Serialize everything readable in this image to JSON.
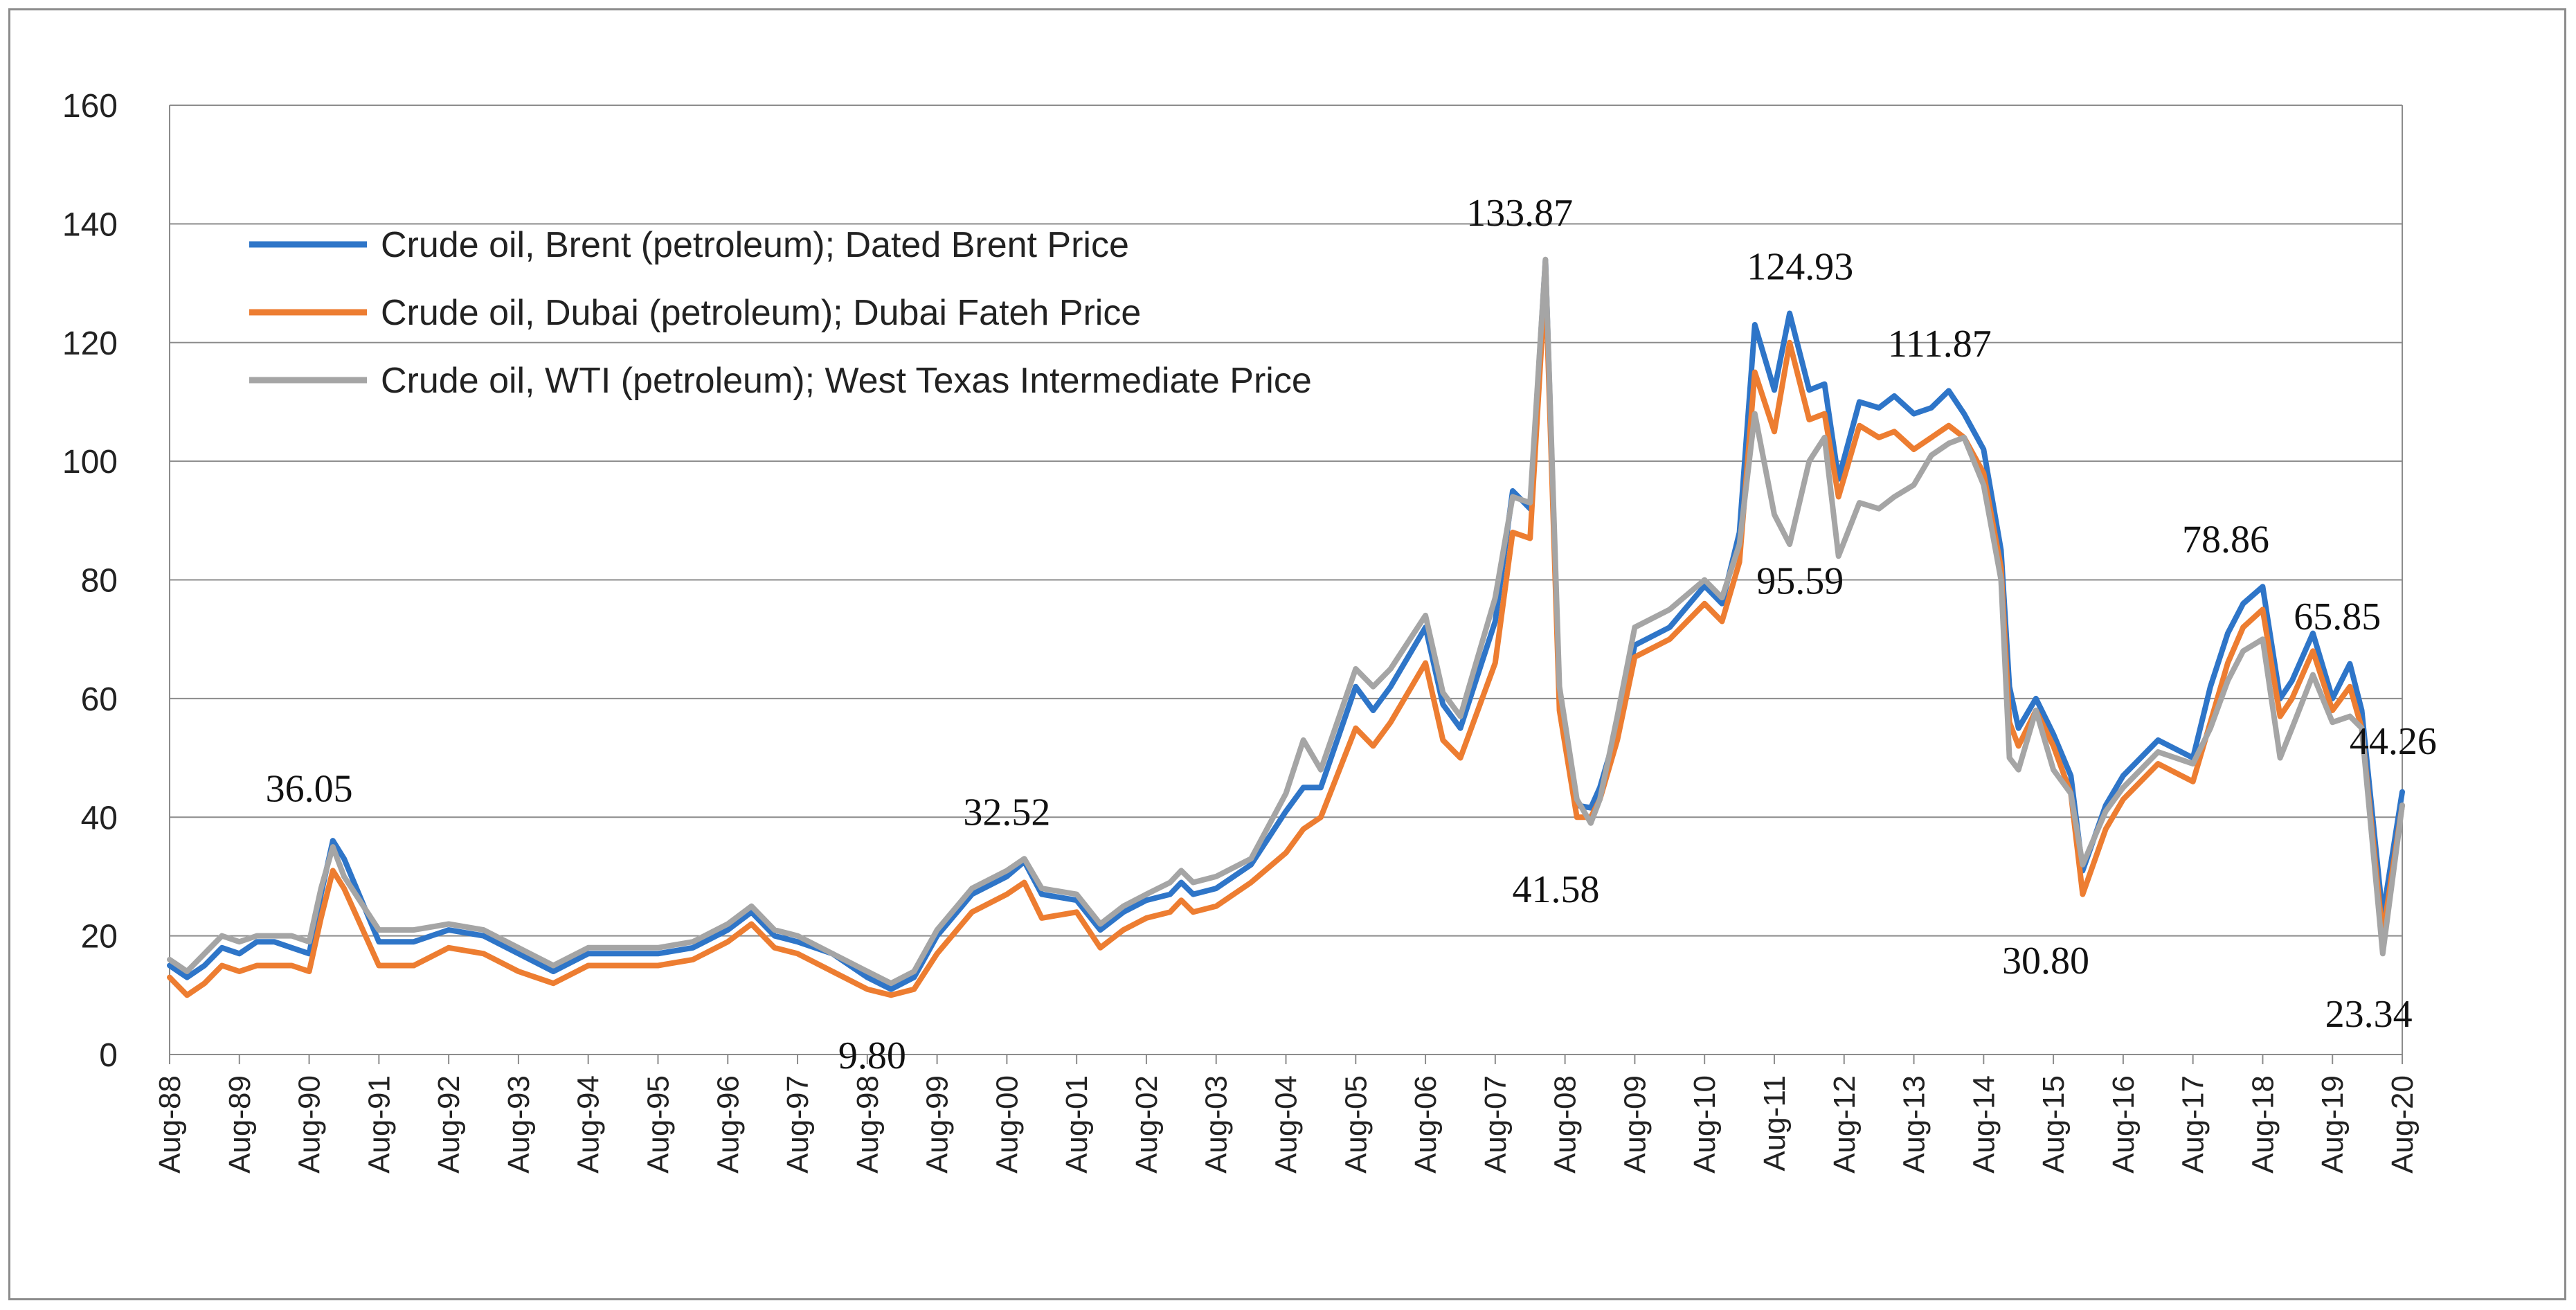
{
  "chart_data": {
    "type": "line",
    "title": "",
    "xlabel": "",
    "ylabel": "",
    "ylim": [
      0,
      160
    ],
    "yticks": [
      0,
      20,
      40,
      60,
      80,
      100,
      120,
      140,
      160
    ],
    "grid": "horizontal",
    "legend_position": "top-left",
    "categories": [
      "Aug-88",
      "Aug-89",
      "Aug-90",
      "Aug-91",
      "Aug-92",
      "Aug-93",
      "Aug-94",
      "Aug-95",
      "Aug-96",
      "Aug-97",
      "Aug-98",
      "Aug-99",
      "Aug-00",
      "Aug-01",
      "Aug-02",
      "Aug-03",
      "Aug-04",
      "Aug-05",
      "Aug-06",
      "Aug-07",
      "Aug-08",
      "Aug-09",
      "Aug-10",
      "Aug-11",
      "Aug-12",
      "Aug-13",
      "Aug-14",
      "Aug-15",
      "Aug-16",
      "Aug-17",
      "Aug-18",
      "Aug-19",
      "Aug-20"
    ],
    "series": [
      {
        "name": "Crude oil, Brent  (petroleum); Dated Brent Price",
        "color": "#2e75c8",
        "x": [
          1988.58,
          1988.83,
          1989.08,
          1989.33,
          1989.58,
          1989.83,
          1990.08,
          1990.33,
          1990.58,
          1990.75,
          1990.92,
          1991.08,
          1991.58,
          1992.08,
          1992.58,
          1993.08,
          1993.58,
          1994.08,
          1994.58,
          1995.08,
          1995.58,
          1996.08,
          1996.58,
          1996.92,
          1997.25,
          1997.58,
          1998.08,
          1998.58,
          1998.92,
          1999.25,
          1999.58,
          2000.08,
          2000.58,
          2000.83,
          2001.08,
          2001.58,
          2001.92,
          2002.25,
          2002.58,
          2002.92,
          2003.08,
          2003.25,
          2003.58,
          2004.08,
          2004.58,
          2004.83,
          2005.08,
          2005.58,
          2005.83,
          2006.08,
          2006.58,
          2006.83,
          2007.08,
          2007.58,
          2007.83,
          2008.08,
          2008.3,
          2008.5,
          2008.75,
          2008.95,
          2009.08,
          2009.33,
          2009.58,
          2010.08,
          2010.58,
          2010.83,
          2011.08,
          2011.3,
          2011.58,
          2011.8,
          2012.08,
          2012.3,
          2012.5,
          2012.8,
          2013.08,
          2013.3,
          2013.58,
          2013.83,
          2014.08,
          2014.3,
          2014.58,
          2014.83,
          2014.95,
          2015.08,
          2015.33,
          2015.58,
          2015.83,
          2016.0,
          2016.33,
          2016.58,
          2017.08,
          2017.58,
          2017.83,
          2018.08,
          2018.3,
          2018.58,
          2018.83,
          2019.0,
          2019.3,
          2019.58,
          2019.83,
          2020.0,
          2020.3,
          2020.58
        ],
        "values": [
          15,
          13,
          15,
          18,
          17,
          19,
          19,
          18,
          17,
          27,
          36.05,
          33,
          19,
          19,
          21,
          20,
          17,
          14,
          17,
          17,
          17,
          18,
          21,
          24,
          20,
          19,
          17,
          13,
          11,
          13,
          20,
          27,
          30,
          32.52,
          27,
          26,
          21,
          24,
          26,
          27,
          29,
          27,
          28,
          32,
          41,
          45,
          45,
          62,
          58,
          62,
          72,
          59,
          55,
          73,
          95,
          92,
          133.87,
          60,
          42,
          41.58,
          45,
          55,
          69,
          72,
          79,
          76,
          88,
          123,
          112,
          124.93,
          112,
          113,
          97,
          110,
          109,
          111,
          108,
          109,
          111.87,
          108,
          102,
          85,
          62,
          55,
          60,
          54,
          47,
          31,
          42,
          47,
          53,
          50,
          62,
          71,
          76,
          78.86,
          60,
          63,
          71,
          60,
          65.85,
          58,
          23.34,
          44.26
        ]
      },
      {
        "name": "Crude oil, Dubai (petroleum); Dubai Fateh Price",
        "color": "#ed7d31",
        "x": [
          1988.58,
          1988.83,
          1989.08,
          1989.33,
          1989.58,
          1989.83,
          1990.08,
          1990.33,
          1990.58,
          1990.75,
          1990.92,
          1991.08,
          1991.58,
          1992.08,
          1992.58,
          1993.08,
          1993.58,
          1994.08,
          1994.58,
          1995.08,
          1995.58,
          1996.08,
          1996.58,
          1996.92,
          1997.25,
          1997.58,
          1998.08,
          1998.58,
          1998.92,
          1999.25,
          1999.58,
          2000.08,
          2000.58,
          2000.83,
          2001.08,
          2001.58,
          2001.92,
          2002.25,
          2002.58,
          2002.92,
          2003.08,
          2003.25,
          2003.58,
          2004.08,
          2004.58,
          2004.83,
          2005.08,
          2005.58,
          2005.83,
          2006.08,
          2006.58,
          2006.83,
          2007.08,
          2007.58,
          2007.83,
          2008.08,
          2008.3,
          2008.5,
          2008.75,
          2008.95,
          2009.08,
          2009.33,
          2009.58,
          2010.08,
          2010.58,
          2010.83,
          2011.08,
          2011.3,
          2011.58,
          2011.8,
          2012.08,
          2012.3,
          2012.5,
          2012.8,
          2013.08,
          2013.3,
          2013.58,
          2013.83,
          2014.08,
          2014.3,
          2014.58,
          2014.83,
          2014.95,
          2015.08,
          2015.33,
          2015.58,
          2015.83,
          2016.0,
          2016.33,
          2016.58,
          2017.08,
          2017.58,
          2017.83,
          2018.08,
          2018.3,
          2018.58,
          2018.83,
          2019.0,
          2019.3,
          2019.58,
          2019.83,
          2020.0,
          2020.3,
          2020.58
        ],
        "values": [
          13,
          10,
          12,
          15,
          14,
          15,
          15,
          15,
          14,
          23,
          31,
          28,
          15,
          15,
          18,
          17,
          14,
          12,
          15,
          15,
          15,
          16,
          19,
          22,
          18,
          17,
          14,
          11,
          10,
          11,
          17,
          24,
          27,
          29,
          23,
          24,
          18,
          21,
          23,
          24,
          26,
          24,
          25,
          29,
          34,
          38,
          40,
          55,
          52,
          56,
          66,
          53,
          50,
          66,
          88,
          87,
          131,
          58,
          40,
          40,
          43,
          53,
          67,
          70,
          76,
          73,
          83,
          115,
          105,
          120,
          107,
          108,
          94,
          106,
          104,
          105,
          102,
          104,
          106,
          104,
          98,
          82,
          56,
          52,
          58,
          52,
          44,
          27,
          38,
          43,
          49,
          46,
          56,
          66,
          72,
          75,
          57,
          60,
          68,
          58,
          62,
          55,
          20,
          42
        ]
      },
      {
        "name": "Crude oil, WTI (petroleum); West Texas Intermediate Price",
        "color": "#a5a5a5",
        "x": [
          1988.58,
          1988.83,
          1989.08,
          1989.33,
          1989.58,
          1989.83,
          1990.08,
          1990.33,
          1990.58,
          1990.75,
          1990.92,
          1991.08,
          1991.58,
          1992.08,
          1992.58,
          1993.08,
          1993.58,
          1994.08,
          1994.58,
          1995.08,
          1995.58,
          1996.08,
          1996.58,
          1996.92,
          1997.25,
          1997.58,
          1998.08,
          1998.58,
          1998.92,
          1999.25,
          1999.58,
          2000.08,
          2000.58,
          2000.83,
          2001.08,
          2001.58,
          2001.92,
          2002.25,
          2002.58,
          2002.92,
          2003.08,
          2003.25,
          2003.58,
          2004.08,
          2004.58,
          2004.83,
          2005.08,
          2005.58,
          2005.83,
          2006.08,
          2006.58,
          2006.83,
          2007.08,
          2007.58,
          2007.83,
          2008.08,
          2008.3,
          2008.5,
          2008.75,
          2008.95,
          2009.08,
          2009.33,
          2009.58,
          2010.08,
          2010.58,
          2010.83,
          2011.08,
          2011.3,
          2011.58,
          2011.8,
          2012.08,
          2012.3,
          2012.5,
          2012.8,
          2013.08,
          2013.3,
          2013.58,
          2013.83,
          2014.08,
          2014.3,
          2014.58,
          2014.83,
          2014.95,
          2015.08,
          2015.33,
          2015.58,
          2015.83,
          2016.0,
          2016.33,
          2016.58,
          2017.08,
          2017.58,
          2017.83,
          2018.08,
          2018.3,
          2018.58,
          2018.83,
          2019.0,
          2019.3,
          2019.58,
          2019.83,
          2020.0,
          2020.3,
          2020.58
        ],
        "values": [
          16,
          14,
          17,
          20,
          19,
          20,
          20,
          20,
          19,
          28,
          35,
          30,
          21,
          21,
          22,
          21,
          18,
          15,
          18,
          18,
          18,
          19,
          22,
          25,
          21,
          20,
          17,
          14,
          12,
          14,
          21,
          28,
          31,
          33,
          28,
          27,
          22,
          25,
          27,
          29,
          31,
          29,
          30,
          33,
          44,
          53,
          48,
          65,
          62,
          65,
          74,
          61,
          57,
          77,
          94,
          93,
          134,
          62,
          43,
          39,
          43,
          57,
          72,
          75,
          80,
          77,
          86,
          108,
          91,
          86,
          100,
          104,
          84,
          93,
          92,
          94,
          96,
          101,
          103,
          104,
          96,
          80,
          50,
          48,
          58,
          48,
          44,
          32,
          41,
          45,
          51,
          49,
          55,
          63,
          68,
          70,
          50,
          55,
          64,
          56,
          57,
          55,
          17,
          42
        ]
      }
    ],
    "annotations": [
      {
        "text": "36.05",
        "x": 1990.58,
        "y": 45
      },
      {
        "text": "9.80",
        "x": 1998.65,
        "y": 0
      },
      {
        "text": "32.52",
        "x": 2000.58,
        "y": 41
      },
      {
        "text": "133.87",
        "x": 2007.93,
        "y": 142
      },
      {
        "text": "41.58",
        "x": 2008.45,
        "y": 28
      },
      {
        "text": "124.93",
        "x": 2011.95,
        "y": 133
      },
      {
        "text": "95.59",
        "x": 2011.95,
        "y": 80
      },
      {
        "text": "111.87",
        "x": 2013.95,
        "y": 120
      },
      {
        "text": "30.80",
        "x": 2015.47,
        "y": 16
      },
      {
        "text": "78.86",
        "x": 2018.05,
        "y": 87
      },
      {
        "text": "65.85",
        "x": 2019.65,
        "y": 74
      },
      {
        "text": "44.26",
        "x": 2020.45,
        "y": 53
      },
      {
        "text": "23.34",
        "x": 2020.1,
        "y": 7
      }
    ]
  }
}
